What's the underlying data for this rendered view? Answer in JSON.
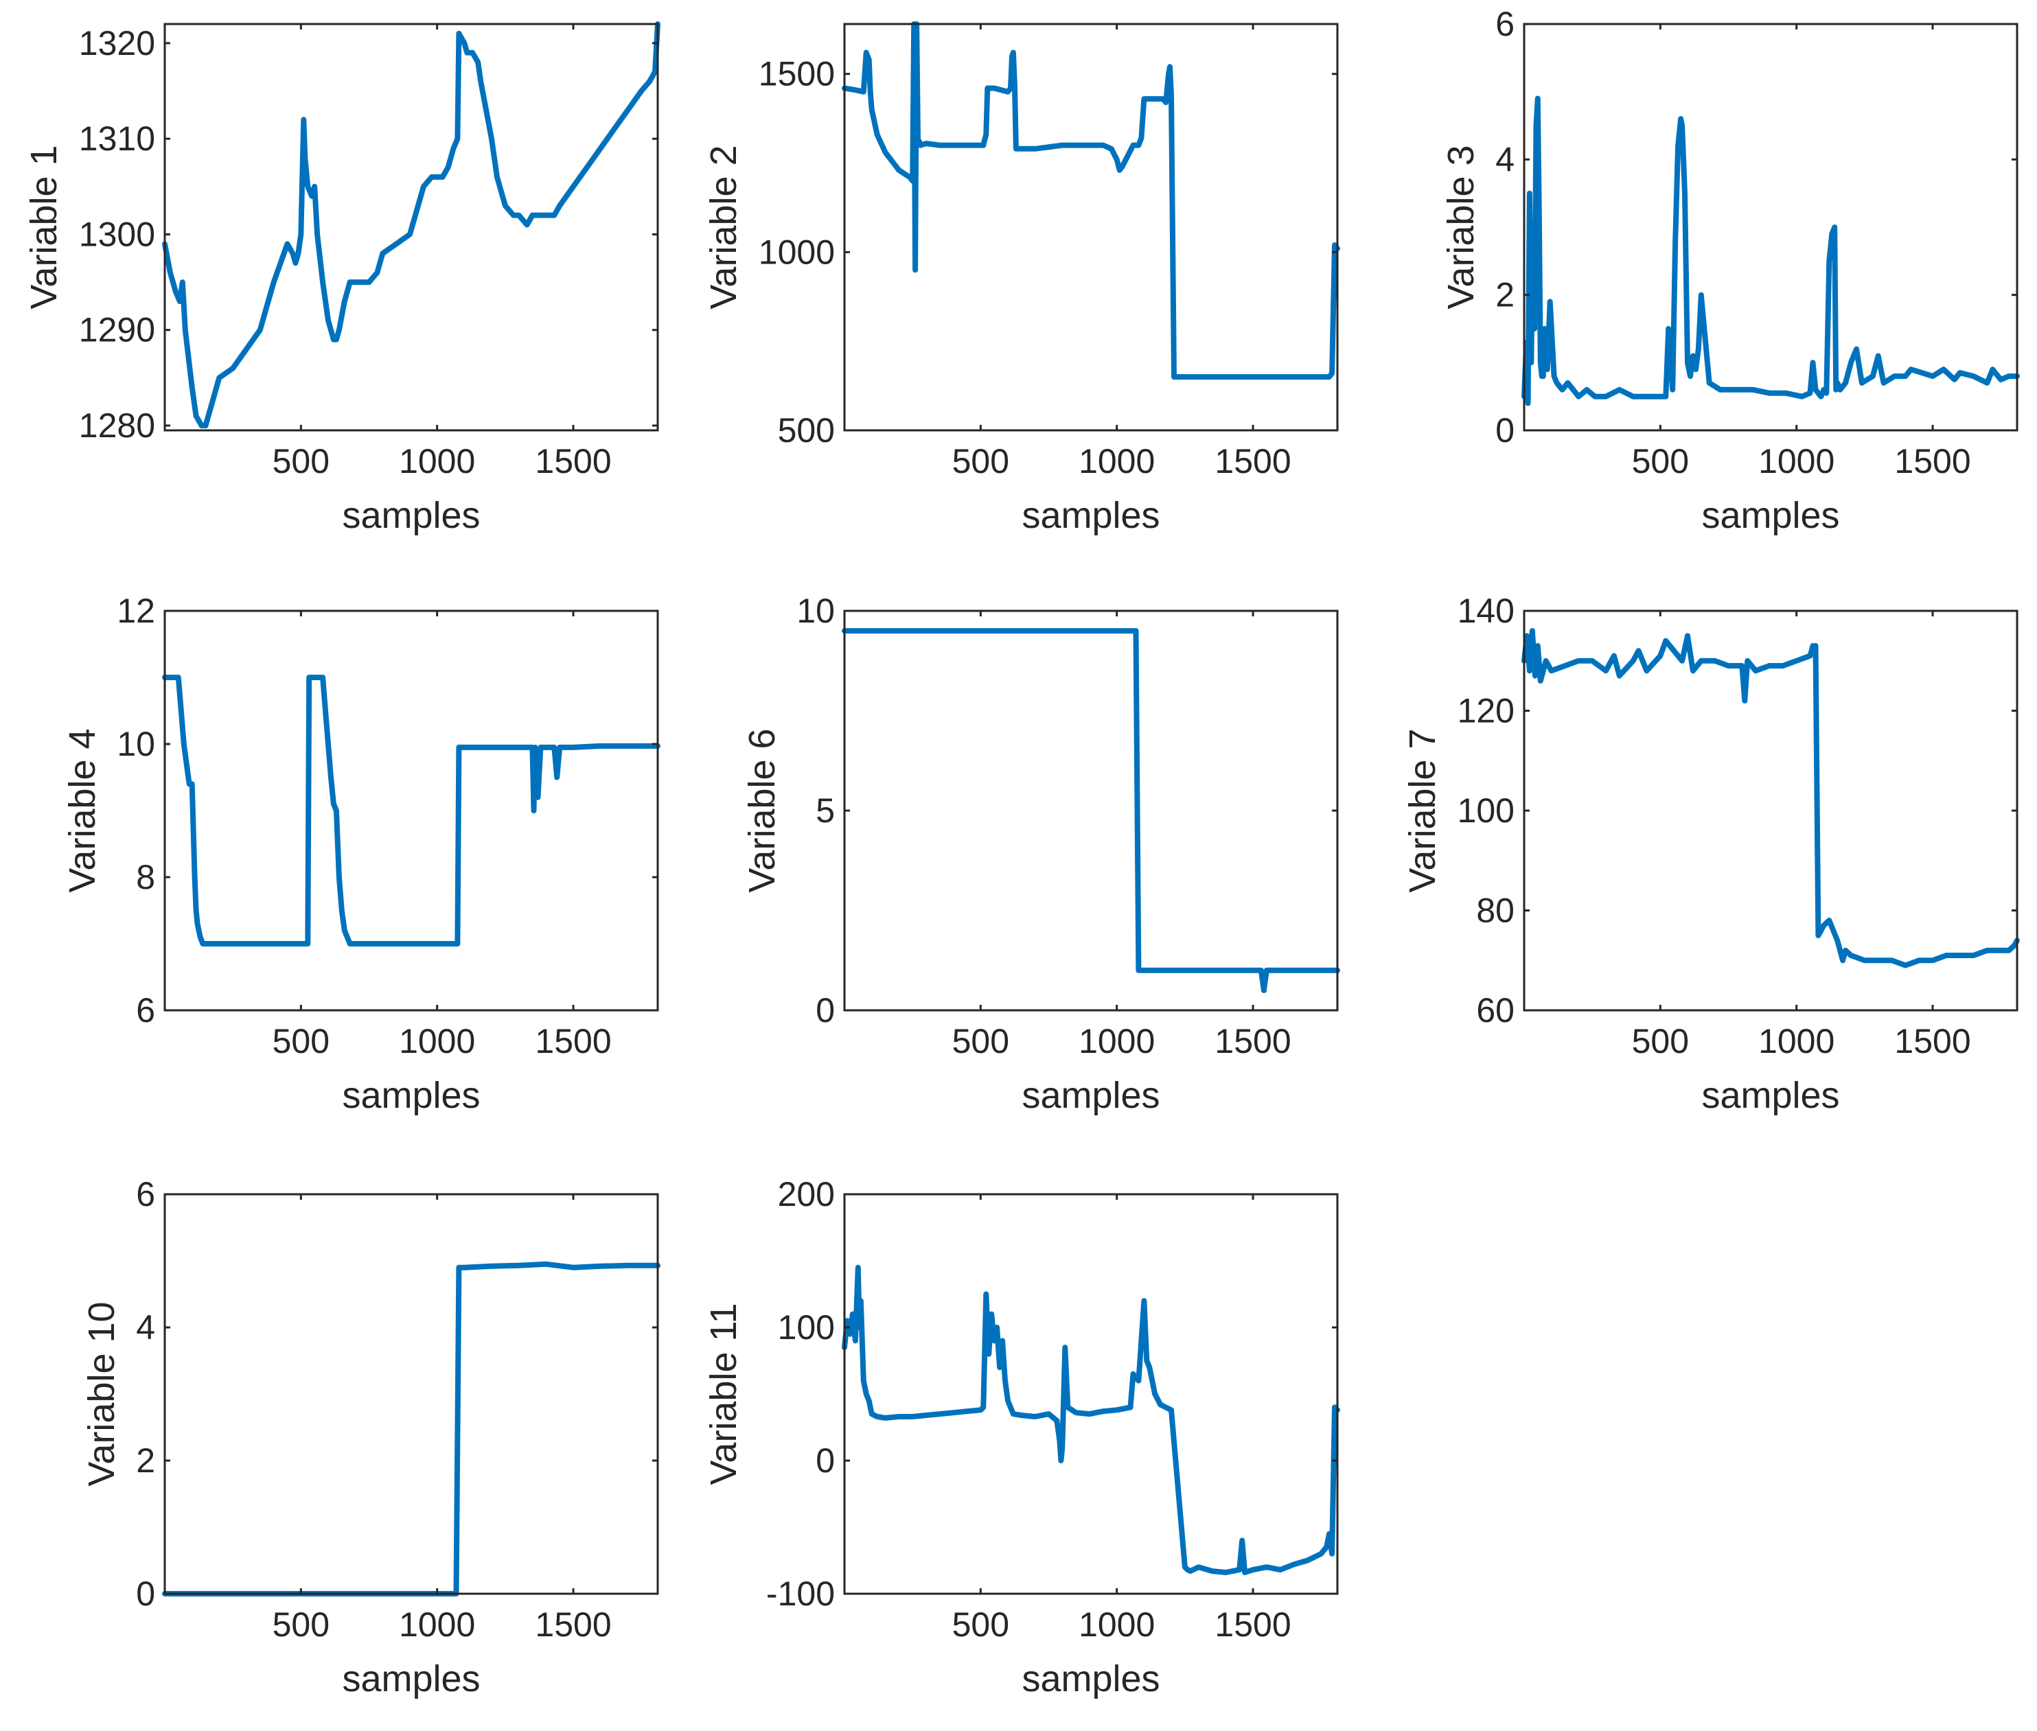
{
  "style": {
    "line_color": "#0072BD",
    "axis_color": "#262626",
    "background": "#ffffff"
  },
  "chart_data": [
    {
      "type": "line",
      "title": "",
      "xlabel": "samples",
      "ylabel": "Variable 1",
      "xlim": [
        0,
        1810
      ],
      "ylim": [
        1279.5,
        1322
      ],
      "xticks": [
        500,
        1000,
        1500
      ],
      "yticks": [
        1280,
        1290,
        1300,
        1310,
        1320
      ],
      "series": [
        {
          "name": "Variable 1",
          "x": [
            0,
            20,
            40,
            55,
            65,
            75,
            100,
            115,
            135,
            150,
            200,
            250,
            300,
            350,
            400,
            450,
            470,
            480,
            490,
            500,
            510,
            515,
            525,
            540,
            550,
            560,
            580,
            600,
            620,
            630,
            640,
            660,
            680,
            700,
            750,
            780,
            800,
            850,
            900,
            920,
            950,
            980,
            1000,
            1020,
            1040,
            1060,
            1075,
            1080,
            1100,
            1110,
            1130,
            1150,
            1160,
            1180,
            1200,
            1220,
            1250,
            1280,
            1300,
            1330,
            1350,
            1380,
            1400,
            1430,
            1450,
            1500,
            1550,
            1600,
            1650,
            1700,
            1750,
            1780,
            1800,
            1810
          ],
          "values": [
            1299,
            1296,
            1294,
            1293,
            1295,
            1290,
            1284,
            1281,
            1280,
            1280,
            1285,
            1286,
            1288,
            1290,
            1295,
            1299,
            1298,
            1297,
            1298,
            1300,
            1312,
            1308,
            1305,
            1304,
            1305,
            1300,
            1295,
            1291,
            1289,
            1289,
            1290,
            1293,
            1295,
            1295,
            1295,
            1296,
            1298,
            1299,
            1300,
            1302,
            1305,
            1306,
            1306,
            1306,
            1307,
            1309,
            1310,
            1321,
            1320,
            1319,
            1319,
            1318,
            1316,
            1313,
            1310,
            1306,
            1303,
            1302,
            1302,
            1301,
            1302,
            1302,
            1302,
            1302,
            1303,
            1305,
            1307,
            1309,
            1311,
            1313,
            1315,
            1316,
            1317,
            1322
          ]
        }
      ]
    },
    {
      "type": "line",
      "title": "",
      "xlabel": "samples",
      "ylabel": "Variable 2",
      "xlim": [
        0,
        1810
      ],
      "ylim": [
        500,
        1640
      ],
      "xticks": [
        500,
        1000,
        1500
      ],
      "yticks": [
        500,
        1000,
        1500
      ],
      "series": [
        {
          "name": "Variable 2",
          "x": [
            0,
            40,
            70,
            80,
            90,
            95,
            100,
            120,
            150,
            180,
            200,
            220,
            240,
            250,
            255,
            260,
            265,
            270,
            275,
            280,
            300,
            350,
            400,
            450,
            480,
            510,
            520,
            525,
            550,
            600,
            610,
            615,
            620,
            625,
            630,
            650,
            700,
            800,
            900,
            950,
            980,
            1000,
            1010,
            1020,
            1040,
            1060,
            1080,
            1090,
            1100,
            1150,
            1170,
            1180,
            1190,
            1195,
            1200,
            1210,
            1300,
            1400,
            1500,
            1600,
            1700,
            1780,
            1790,
            1800,
            1810
          ],
          "values": [
            1460,
            1455,
            1450,
            1560,
            1540,
            1450,
            1400,
            1330,
            1280,
            1250,
            1230,
            1220,
            1210,
            1200,
            1640,
            950,
            1640,
            1300,
            1310,
            1300,
            1305,
            1300,
            1300,
            1300,
            1300,
            1300,
            1330,
            1460,
            1460,
            1450,
            1460,
            1550,
            1560,
            1470,
            1290,
            1290,
            1290,
            1300,
            1300,
            1300,
            1290,
            1260,
            1230,
            1240,
            1270,
            1300,
            1300,
            1320,
            1430,
            1430,
            1430,
            1420,
            1500,
            1520,
            1440,
            650,
            650,
            650,
            650,
            650,
            650,
            650,
            660,
            1020,
            1010
          ]
        }
      ]
    },
    {
      "type": "line",
      "title": "",
      "xlabel": "samples",
      "ylabel": "Variable 3",
      "xlim": [
        0,
        1810
      ],
      "ylim": [
        0,
        6
      ],
      "xticks": [
        500,
        1000,
        1500
      ],
      "yticks": [
        0,
        2,
        4,
        6
      ],
      "series": [
        {
          "name": "Variable 3",
          "x": [
            0,
            8,
            14,
            20,
            26,
            32,
            38,
            44,
            50,
            55,
            60,
            65,
            70,
            75,
            85,
            95,
            110,
            120,
            140,
            160,
            180,
            200,
            230,
            260,
            300,
            350,
            400,
            450,
            500,
            520,
            530,
            545,
            555,
            565,
            575,
            580,
            590,
            600,
            610,
            620,
            630,
            640,
            650,
            680,
            720,
            780,
            840,
            900,
            960,
            1020,
            1050,
            1060,
            1070,
            1090,
            1100,
            1110,
            1120,
            1130,
            1140,
            1145,
            1150,
            1160,
            1180,
            1200,
            1220,
            1240,
            1280,
            1300,
            1320,
            1360,
            1400,
            1420,
            1460,
            1500,
            1540,
            1580,
            1600,
            1650,
            1700,
            1720,
            1750,
            1780,
            1810
          ],
          "values": [
            0.5,
            1.3,
            0.4,
            3.5,
            1.0,
            3.0,
            1.5,
            4.5,
            4.9,
            3.2,
            1.0,
            0.8,
            0.8,
            1.5,
            0.9,
            1.9,
            0.8,
            0.7,
            0.6,
            0.7,
            0.6,
            0.5,
            0.6,
            0.5,
            0.5,
            0.6,
            0.5,
            0.5,
            0.5,
            0.5,
            1.5,
            0.6,
            2.8,
            4.2,
            4.6,
            4.5,
            3.5,
            1.0,
            0.8,
            1.1,
            0.9,
            1.2,
            2.0,
            0.7,
            0.6,
            0.6,
            0.6,
            0.55,
            0.55,
            0.5,
            0.55,
            1.0,
            0.6,
            0.5,
            0.6,
            0.55,
            2.5,
            2.9,
            3.0,
            0.6,
            0.7,
            0.6,
            0.7,
            1.0,
            1.2,
            0.7,
            0.8,
            1.1,
            0.7,
            0.8,
            0.8,
            0.9,
            0.85,
            0.8,
            0.9,
            0.75,
            0.85,
            0.8,
            0.7,
            0.9,
            0.75,
            0.8,
            0.8
          ]
        }
      ]
    },
    {
      "type": "line",
      "title": "",
      "xlabel": "samples",
      "ylabel": "Variable 4",
      "xlim": [
        0,
        1810
      ],
      "ylim": [
        6,
        12
      ],
      "xticks": [
        500,
        1000,
        1500
      ],
      "yticks": [
        6,
        8,
        10,
        12
      ],
      "series": [
        {
          "name": "Variable 4",
          "x": [
            0,
            30,
            50,
            60,
            70,
            80,
            90,
            100,
            110,
            115,
            120,
            130,
            140,
            150,
            200,
            300,
            400,
            480,
            520,
            525,
            530,
            540,
            560,
            580,
            590,
            600,
            610,
            620,
            630,
            640,
            650,
            660,
            680,
            700,
            800,
            900,
            1000,
            1050,
            1075,
            1080,
            1100,
            1200,
            1300,
            1340,
            1350,
            1355,
            1360,
            1370,
            1380,
            1400,
            1420,
            1430,
            1440,
            1450,
            1500,
            1600,
            1700,
            1810
          ],
          "values": [
            11,
            11,
            11,
            10.5,
            10.0,
            9.7,
            9.4,
            9.4,
            8.0,
            7.5,
            7.3,
            7.1,
            7.0,
            7.0,
            7.0,
            7.0,
            7.0,
            7.0,
            7.0,
            7.0,
            11,
            11,
            11,
            11,
            10.5,
            10.0,
            9.5,
            9.1,
            9.0,
            8.0,
            7.5,
            7.2,
            7.0,
            7.0,
            7.0,
            7.0,
            7.0,
            7.0,
            7.0,
            9.95,
            9.95,
            9.95,
            9.95,
            9.95,
            9.95,
            9.0,
            9.95,
            9.2,
            9.95,
            9.95,
            9.95,
            9.95,
            9.5,
            9.95,
            9.95,
            9.97,
            9.97,
            9.97
          ]
        }
      ]
    },
    {
      "type": "line",
      "title": "",
      "xlabel": "samples",
      "ylabel": "Variable 6",
      "xlim": [
        0,
        1810
      ],
      "ylim": [
        0,
        10
      ],
      "xticks": [
        500,
        1000,
        1500
      ],
      "yticks": [
        0,
        5,
        10
      ],
      "series": [
        {
          "name": "Variable 6",
          "x": [
            0,
            500,
            1000,
            1070,
            1080,
            1100,
            1200,
            1300,
            1400,
            1500,
            1530,
            1540,
            1550,
            1600,
            1700,
            1810
          ],
          "values": [
            9.5,
            9.5,
            9.5,
            9.5,
            1.0,
            1.0,
            1.0,
            1.0,
            1.0,
            1.0,
            1.0,
            0.5,
            1.0,
            1.0,
            1.0,
            1.0
          ]
        }
      ]
    },
    {
      "type": "line",
      "title": "",
      "xlabel": "samples",
      "ylabel": "Variable 7",
      "xlim": [
        0,
        1810
      ],
      "ylim": [
        60,
        140
      ],
      "xticks": [
        500,
        1000,
        1500
      ],
      "yticks": [
        60,
        80,
        100,
        120,
        140
      ],
      "series": [
        {
          "name": "Variable 7",
          "x": [
            0,
            10,
            20,
            30,
            40,
            50,
            60,
            80,
            100,
            150,
            200,
            250,
            300,
            330,
            350,
            400,
            420,
            450,
            500,
            520,
            550,
            580,
            600,
            620,
            650,
            700,
            750,
            800,
            810,
            820,
            850,
            900,
            950,
            1000,
            1050,
            1060,
            1065,
            1070,
            1080,
            1100,
            1120,
            1150,
            1170,
            1180,
            1200,
            1250,
            1300,
            1350,
            1400,
            1450,
            1500,
            1550,
            1600,
            1650,
            1700,
            1750,
            1780,
            1800,
            1810
          ],
          "values": [
            130,
            135,
            128,
            136,
            127,
            133,
            126,
            130,
            128,
            129,
            130,
            130,
            128,
            131,
            127,
            130,
            132,
            128,
            131,
            134,
            132,
            130,
            135,
            128,
            130,
            130,
            129,
            129,
            122,
            130,
            128,
            129,
            129,
            130,
            131,
            133,
            132,
            133,
            75,
            77,
            78,
            74,
            70,
            72,
            71,
            70,
            70,
            70,
            69,
            70,
            70,
            71,
            71,
            71,
            72,
            72,
            72,
            73,
            74
          ]
        }
      ]
    },
    {
      "type": "line",
      "title": "",
      "xlabel": "samples",
      "ylabel": "Variable 10",
      "xlim": [
        0,
        1810
      ],
      "ylim": [
        0,
        6
      ],
      "xticks": [
        500,
        1000,
        1500
      ],
      "yticks": [
        0,
        2,
        4,
        6
      ],
      "series": [
        {
          "name": "Variable 10",
          "x": [
            0,
            500,
            1000,
            1070,
            1080,
            1100,
            1200,
            1300,
            1400,
            1500,
            1600,
            1700,
            1810
          ],
          "values": [
            0,
            0,
            0,
            0,
            4.9,
            4.9,
            4.92,
            4.93,
            4.95,
            4.9,
            4.92,
            4.93,
            4.93
          ]
        }
      ]
    },
    {
      "type": "line",
      "title": "",
      "xlabel": "samples",
      "ylabel": "Variable 11",
      "xlim": [
        0,
        1810
      ],
      "ylim": [
        -100,
        200
      ],
      "xticks": [
        500,
        1000,
        1500
      ],
      "yticks": [
        -100,
        0,
        100,
        200
      ],
      "series": [
        {
          "name": "Variable 11",
          "x": [
            0,
            10,
            20,
            30,
            40,
            50,
            55,
            60,
            70,
            80,
            90,
            100,
            120,
            150,
            200,
            250,
            300,
            350,
            400,
            450,
            500,
            510,
            520,
            530,
            540,
            550,
            560,
            570,
            580,
            590,
            600,
            620,
            650,
            700,
            750,
            780,
            790,
            795,
            800,
            810,
            820,
            850,
            900,
            950,
            1000,
            1050,
            1060,
            1080,
            1100,
            1110,
            1120,
            1140,
            1160,
            1180,
            1200,
            1250,
            1260,
            1270,
            1300,
            1350,
            1400,
            1450,
            1460,
            1470,
            1500,
            1550,
            1600,
            1650,
            1700,
            1750,
            1770,
            1780,
            1790,
            1800,
            1810
          ],
          "values": [
            85,
            105,
            95,
            110,
            90,
            145,
            100,
            120,
            60,
            50,
            45,
            35,
            33,
            32,
            33,
            33,
            34,
            35,
            36,
            37,
            38,
            40,
            125,
            80,
            110,
            90,
            100,
            70,
            90,
            60,
            45,
            35,
            34,
            33,
            35,
            30,
            15,
            0,
            10,
            85,
            40,
            36,
            35,
            37,
            38,
            40,
            65,
            60,
            120,
            75,
            70,
            50,
            42,
            40,
            38,
            -80,
            -82,
            -83,
            -80,
            -83,
            -84,
            -82,
            -60,
            -84,
            -82,
            -80,
            -82,
            -78,
            -75,
            -70,
            -65,
            -55,
            -70,
            40,
            38
          ]
        }
      ]
    }
  ]
}
